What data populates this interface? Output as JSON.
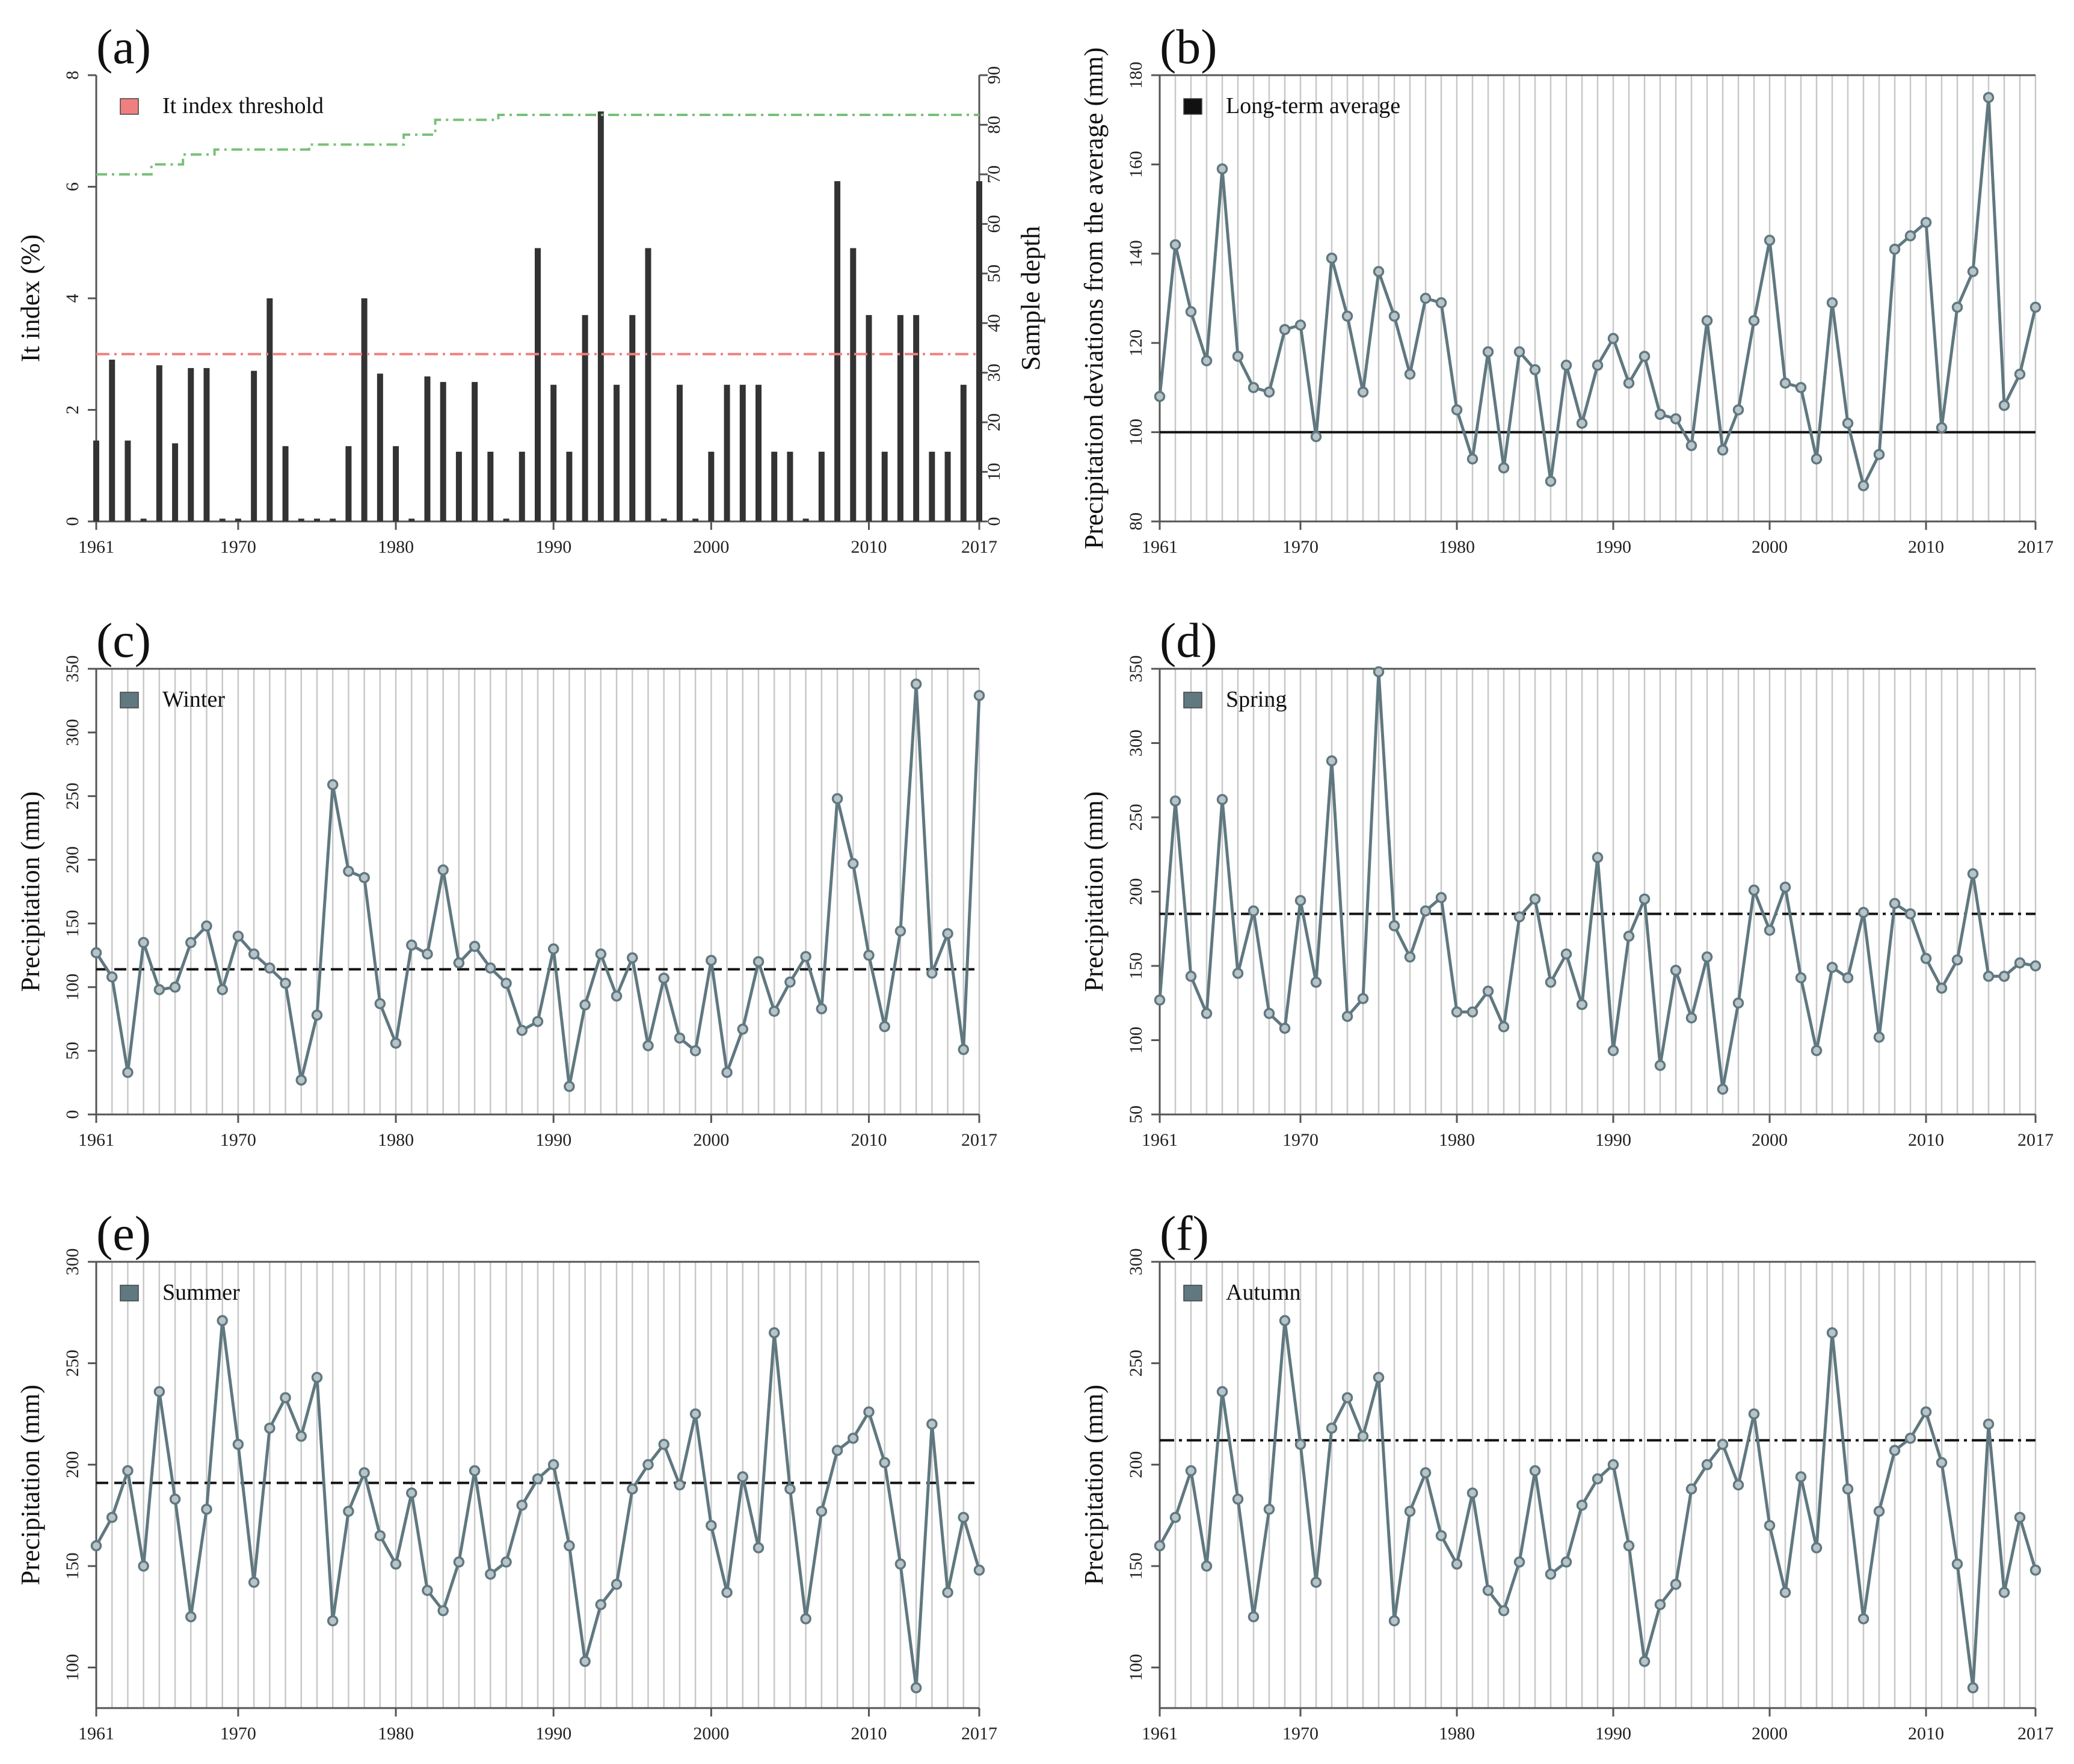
{
  "chart_data": [
    {
      "id": "a",
      "type": "bar",
      "panel_label": "(a)",
      "x": [
        1961,
        1962,
        1963,
        1964,
        1965,
        1966,
        1967,
        1968,
        1969,
        1970,
        1971,
        1972,
        1973,
        1974,
        1975,
        1976,
        1977,
        1978,
        1979,
        1980,
        1981,
        1982,
        1983,
        1984,
        1985,
        1986,
        1987,
        1988,
        1989,
        1990,
        1991,
        1992,
        1993,
        1994,
        1995,
        1996,
        1997,
        1998,
        1999,
        2000,
        2001,
        2002,
        2003,
        2004,
        2005,
        2006,
        2007,
        2008,
        2009,
        2010,
        2011,
        2012,
        2013,
        2014,
        2015,
        2016,
        2017
      ],
      "values": [
        1.45,
        2.9,
        1.45,
        0.05,
        2.8,
        1.4,
        2.75,
        2.75,
        0.05,
        0.05,
        2.7,
        4.0,
        1.35,
        0.05,
        0.05,
        0.05,
        1.35,
        4.0,
        2.65,
        1.35,
        0.05,
        2.6,
        2.5,
        1.25,
        2.5,
        1.25,
        0.05,
        1.25,
        4.9,
        2.45,
        1.25,
        3.7,
        7.35,
        2.45,
        3.7,
        4.9,
        0.05,
        2.45,
        0.05,
        1.25,
        2.45,
        2.45,
        2.45,
        1.25,
        1.25,
        0.05,
        1.25,
        6.1,
        4.9,
        3.7,
        1.25,
        3.7,
        3.7,
        1.25,
        1.25,
        2.45,
        6.1
      ],
      "threshold": 3.0,
      "sample_depth": [
        70,
        70,
        70,
        70,
        72,
        72,
        74,
        74,
        75,
        75,
        75,
        75,
        75,
        75,
        76,
        76,
        76,
        76,
        76,
        76,
        78,
        78,
        81,
        81,
        81,
        81,
        82,
        82,
        82,
        82,
        82,
        82,
        82,
        82,
        82,
        82,
        82,
        82,
        82,
        82,
        82,
        82,
        82,
        82,
        82,
        82,
        82,
        82,
        82,
        82,
        82,
        82,
        82,
        82,
        82,
        82,
        82
      ],
      "ylabel": "It index (%)",
      "y2label": "Sample depth",
      "ylim": [
        0,
        8
      ],
      "yticks": [
        0,
        2,
        4,
        6,
        8
      ],
      "y2lim": [
        0,
        90
      ],
      "y2ticks": [
        0,
        10,
        20,
        30,
        40,
        50,
        60,
        70,
        80,
        90
      ],
      "xticks": [
        1961,
        1970,
        1980,
        1990,
        2000,
        2010,
        2017
      ],
      "legend": "It index threshold",
      "legend_color": "#f08080",
      "depth_color": "#78c078",
      "bar_color": "#333333"
    },
    {
      "id": "b",
      "type": "line",
      "panel_label": "(b)",
      "x": [
        1961,
        1962,
        1963,
        1964,
        1965,
        1966,
        1967,
        1968,
        1969,
        1970,
        1971,
        1972,
        1973,
        1974,
        1975,
        1976,
        1977,
        1978,
        1979,
        1980,
        1981,
        1982,
        1983,
        1984,
        1985,
        1986,
        1987,
        1988,
        1989,
        1990,
        1991,
        1992,
        1993,
        1994,
        1995,
        1996,
        1997,
        1998,
        1999,
        2000,
        2001,
        2002,
        2003,
        2004,
        2005,
        2006,
        2007,
        2008,
        2009,
        2010,
        2011,
        2012,
        2013,
        2014,
        2015,
        2016,
        2017
      ],
      "values": [
        108,
        142,
        127,
        116,
        159,
        117,
        110,
        109,
        123,
        124,
        99,
        139,
        126,
        109,
        136,
        126,
        113,
        130,
        129,
        105,
        94,
        118,
        92,
        118,
        114,
        89,
        115,
        102,
        115,
        121,
        111,
        117,
        104,
        103,
        97,
        125,
        96,
        105,
        125,
        143,
        111,
        110,
        94,
        129,
        102,
        88,
        95,
        141,
        144,
        147,
        101,
        128,
        136,
        175,
        106,
        113,
        128
      ],
      "reference": 100,
      "ylabel": "Precipitation deviations from the average (mm)",
      "ylim": [
        80,
        180
      ],
      "yticks": [
        80,
        100,
        120,
        140,
        160,
        180
      ],
      "xticks": [
        1961,
        1970,
        1980,
        1990,
        2000,
        2010,
        2017
      ],
      "legend": "Long-term average",
      "legend_color": "#111111",
      "line_color": "#607880",
      "ref_style": "solid"
    },
    {
      "id": "c",
      "type": "line",
      "panel_label": "(c)",
      "x": [
        1961,
        1962,
        1963,
        1964,
        1965,
        1966,
        1967,
        1968,
        1969,
        1970,
        1971,
        1972,
        1973,
        1974,
        1975,
        1976,
        1977,
        1978,
        1979,
        1980,
        1981,
        1982,
        1983,
        1984,
        1985,
        1986,
        1987,
        1988,
        1989,
        1990,
        1991,
        1992,
        1993,
        1994,
        1995,
        1996,
        1997,
        1998,
        1999,
        2000,
        2001,
        2002,
        2003,
        2004,
        2005,
        2006,
        2007,
        2008,
        2009,
        2010,
        2011,
        2012,
        2013,
        2014,
        2015,
        2016,
        2017
      ],
      "values": [
        127,
        108,
        33,
        135,
        98,
        100,
        135,
        148,
        98,
        140,
        126,
        115,
        103,
        27,
        78,
        259,
        191,
        186,
        87,
        56,
        133,
        126,
        192,
        119,
        132,
        115,
        103,
        66,
        73,
        130,
        22,
        86,
        126,
        93,
        123,
        54,
        107,
        60,
        50,
        121,
        33,
        67,
        120,
        81,
        104,
        124,
        83,
        248,
        197,
        125,
        69,
        144,
        338,
        111,
        142,
        51,
        329
      ],
      "reference": 114,
      "ylabel": "Precipitation (mm)",
      "ylim": [
        0,
        350
      ],
      "yticks": [
        0,
        50,
        100,
        150,
        200,
        250,
        300,
        350
      ],
      "xticks": [
        1961,
        1970,
        1980,
        1990,
        2000,
        2010,
        2017
      ],
      "legend": "Winter",
      "legend_color": "#607880",
      "line_color": "#607880",
      "ref_style": "dashed"
    },
    {
      "id": "d",
      "type": "line",
      "panel_label": "(d)",
      "x": [
        1961,
        1962,
        1963,
        1964,
        1965,
        1966,
        1967,
        1968,
        1969,
        1970,
        1971,
        1972,
        1973,
        1974,
        1975,
        1976,
        1977,
        1978,
        1979,
        1980,
        1981,
        1982,
        1983,
        1984,
        1985,
        1986,
        1987,
        1988,
        1989,
        1990,
        1991,
        1992,
        1993,
        1994,
        1995,
        1996,
        1997,
        1998,
        1999,
        2000,
        2001,
        2002,
        2003,
        2004,
        2005,
        2006,
        2007,
        2008,
        2009,
        2010,
        2011,
        2012,
        2013,
        2014,
        2015,
        2016,
        2017
      ],
      "values": [
        127,
        261,
        143,
        118,
        262,
        145,
        187,
        118,
        108,
        194,
        139,
        288,
        116,
        128,
        348,
        177,
        156,
        187,
        196,
        119,
        119,
        133,
        109,
        183,
        195,
        139,
        158,
        124,
        223,
        93,
        170,
        195,
        83,
        147,
        115,
        156,
        67,
        125,
        201,
        174,
        203,
        142,
        93,
        149,
        142,
        186,
        102,
        192,
        185,
        155,
        135,
        154,
        212,
        143,
        143,
        152,
        150
      ],
      "reference": 185,
      "ylabel": "Precipitation (mm)",
      "ylim": [
        50,
        350
      ],
      "yticks": [
        50,
        100,
        150,
        200,
        250,
        300,
        350
      ],
      "xticks": [
        1961,
        1970,
        1980,
        1990,
        2000,
        2010,
        2017
      ],
      "legend": "Spring",
      "legend_color": "#607880",
      "line_color": "#607880",
      "ref_style": "dashdot"
    },
    {
      "id": "e",
      "type": "line",
      "panel_label": "(e)",
      "x": [
        1961,
        1962,
        1963,
        1964,
        1965,
        1966,
        1967,
        1968,
        1969,
        1970,
        1971,
        1972,
        1973,
        1974,
        1975,
        1976,
        1977,
        1978,
        1979,
        1980,
        1981,
        1982,
        1983,
        1984,
        1985,
        1986,
        1987,
        1988,
        1989,
        1990,
        1991,
        1992,
        1993,
        1994,
        1995,
        1996,
        1997,
        1998,
        1999,
        2000,
        2001,
        2002,
        2003,
        2004,
        2005,
        2006,
        2007,
        2008,
        2009,
        2010,
        2011,
        2012,
        2013,
        2014,
        2015,
        2016,
        2017
      ],
      "values": [
        160,
        174,
        197,
        150,
        236,
        183,
        125,
        178,
        271,
        210,
        142,
        218,
        233,
        214,
        243,
        123,
        177,
        196,
        165,
        151,
        186,
        138,
        128,
        152,
        197,
        146,
        152,
        180,
        193,
        200,
        160,
        103,
        131,
        141,
        188,
        200,
        210,
        190,
        225,
        170,
        137,
        194,
        159,
        265,
        188,
        124,
        177,
        207,
        213,
        226,
        201,
        151,
        90,
        220,
        137,
        174,
        148
      ],
      "reference": 191,
      "ylabel": "Precipitation (mm)",
      "ylim": [
        80,
        300
      ],
      "yticks": [
        100,
        150,
        200,
        250,
        300
      ],
      "xticks": [
        1961,
        1970,
        1980,
        1990,
        2000,
        2010,
        2017
      ],
      "legend": "Summer",
      "legend_color": "#607880",
      "line_color": "#607880",
      "ref_style": "dashed"
    },
    {
      "id": "f",
      "type": "line",
      "panel_label": "(f)",
      "x": [
        1961,
        1962,
        1963,
        1964,
        1965,
        1966,
        1967,
        1968,
        1969,
        1970,
        1971,
        1972,
        1973,
        1974,
        1975,
        1976,
        1977,
        1978,
        1979,
        1980,
        1981,
        1982,
        1983,
        1984,
        1985,
        1986,
        1987,
        1988,
        1989,
        1990,
        1991,
        1992,
        1993,
        1994,
        1995,
        1996,
        1997,
        1998,
        1999,
        2000,
        2001,
        2002,
        2003,
        2004,
        2005,
        2006,
        2007,
        2008,
        2009,
        2010,
        2011,
        2012,
        2013,
        2014,
        2015,
        2016,
        2017
      ],
      "values": [
        160,
        174,
        197,
        150,
        236,
        183,
        125,
        178,
        271,
        210,
        142,
        218,
        233,
        214,
        243,
        123,
        177,
        196,
        165,
        151,
        186,
        138,
        128,
        152,
        197,
        146,
        152,
        180,
        193,
        200,
        160,
        103,
        131,
        141,
        188,
        200,
        210,
        190,
        225,
        170,
        137,
        194,
        159,
        265,
        188,
        124,
        177,
        207,
        213,
        226,
        201,
        151,
        90,
        220,
        137,
        174,
        148
      ],
      "reference": 212,
      "ylabel": "Precipitation (mm)",
      "ylim": [
        80,
        300
      ],
      "yticks": [
        100,
        150,
        200,
        250,
        300
      ],
      "xticks": [
        1961,
        1970,
        1980,
        1990,
        2000,
        2010,
        2017
      ],
      "legend": "Autumn",
      "legend_color": "#607880",
      "line_color": "#607880",
      "ref_style": "dashdot"
    }
  ]
}
